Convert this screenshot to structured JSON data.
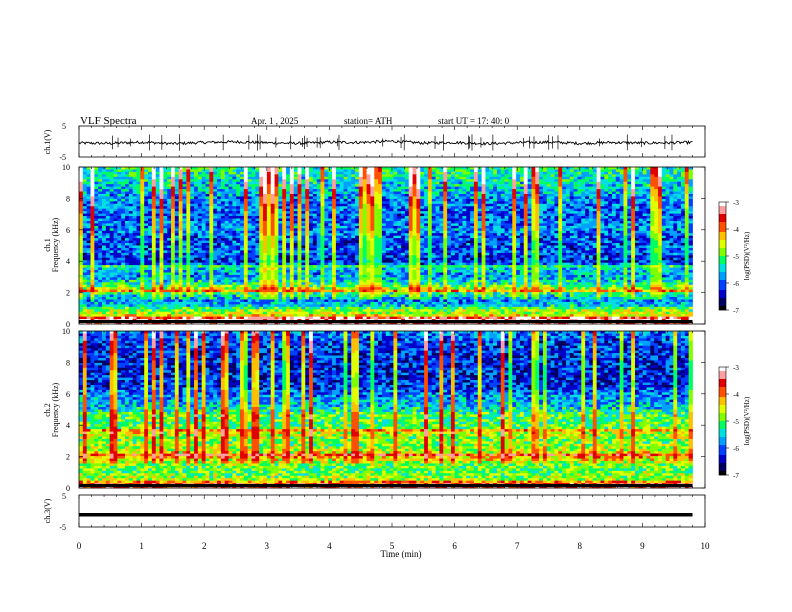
{
  "header": {
    "title": "VLF  Spectra",
    "date": "Apr. 1  , 2025",
    "station": "station= ATH",
    "start": "start  UT  =   17: 40: 0"
  },
  "colors": {
    "spectrum": [
      "#000000",
      "#000060",
      "#0000c8",
      "#0040ff",
      "#00a0ff",
      "#00e0e0",
      "#00ff60",
      "#80ff00",
      "#e0ff00",
      "#ffc000",
      "#ff5000",
      "#e00000",
      "#ffa0a0",
      "#ffffff"
    ],
    "trace": "#000000"
  },
  "chart_data": [
    {
      "type": "line",
      "name": "ch1-waveform",
      "ylabel": "ch.1(V)",
      "ylim": [
        -5,
        5
      ],
      "yticks": [
        "5",
        "-5"
      ],
      "x": [
        0,
        0.5,
        1,
        1.5,
        2,
        2.5,
        3,
        3.5,
        4,
        4.5,
        5,
        5.5,
        6,
        6.5,
        7,
        7.5,
        8,
        8.5,
        9,
        9.5,
        9.8
      ],
      "y": [
        -0.5,
        -0.6,
        -0.2,
        -0.7,
        -0.3,
        -0.1,
        -0.4,
        -0.6,
        -0.2,
        -0.3,
        0.1,
        -0.5,
        -0.3,
        -0.7,
        -0.4,
        -0.2,
        -0.6,
        -0.3,
        -0.5,
        -0.4,
        -0.3
      ]
    },
    {
      "type": "heatmap",
      "name": "ch1-spectrogram",
      "ylabel": "ch.1\nFrequency  (kHz)",
      "ylim": [
        0,
        10
      ],
      "xlim": [
        0,
        10
      ],
      "yticks": [
        0,
        2,
        4,
        6,
        8,
        10
      ],
      "data_end_min": 9.8,
      "colorbar": {
        "label": "log(PSD)(V²/Hz)",
        "range": [
          -7,
          -3
        ],
        "ticks": [
          "-3",
          "-4",
          "-5",
          "-6",
          "-7"
        ]
      },
      "freq_profile": [
        [
          0.0,
          0.95
        ],
        [
          0.3,
          0.8
        ],
        [
          0.6,
          0.6
        ],
        [
          0.9,
          0.55
        ],
        [
          1.2,
          0.35
        ],
        [
          1.5,
          0.3
        ],
        [
          1.9,
          0.42
        ],
        [
          2.2,
          0.62
        ],
        [
          2.5,
          0.45
        ],
        [
          3.0,
          0.3
        ],
        [
          3.5,
          0.35
        ],
        [
          4.0,
          0.2
        ],
        [
          4.6,
          0.25
        ],
        [
          5.3,
          0.22
        ],
        [
          6.0,
          0.3
        ],
        [
          7.0,
          0.25
        ],
        [
          8.0,
          0.3
        ],
        [
          9.0,
          0.38
        ],
        [
          10.0,
          0.45
        ]
      ]
    },
    {
      "type": "heatmap",
      "name": "ch2-spectrogram",
      "ylabel": "ch.2\nFrequency  (kHz)",
      "ylim": [
        0,
        10
      ],
      "xlim": [
        0,
        10
      ],
      "yticks": [
        0,
        2,
        4,
        6,
        8,
        10
      ],
      "data_end_min": 9.8,
      "colorbar": {
        "label": "log(PSD)(V²/Hz)",
        "range": [
          -7,
          -3
        ],
        "ticks": [
          "-3",
          "-4",
          "-5",
          "-6",
          "-7"
        ]
      },
      "freq_profile": [
        [
          0.0,
          0.95
        ],
        [
          0.3,
          0.6
        ],
        [
          0.7,
          0.55
        ],
        [
          1.2,
          0.5
        ],
        [
          1.6,
          0.55
        ],
        [
          2.0,
          0.7
        ],
        [
          2.4,
          0.58
        ],
        [
          3.0,
          0.52
        ],
        [
          3.5,
          0.6
        ],
        [
          4.0,
          0.48
        ],
        [
          4.6,
          0.5
        ],
        [
          5.2,
          0.35
        ],
        [
          5.8,
          0.3
        ],
        [
          6.5,
          0.2
        ],
        [
          7.5,
          0.18
        ],
        [
          8.5,
          0.2
        ],
        [
          9.3,
          0.22
        ],
        [
          10.0,
          0.3
        ]
      ]
    },
    {
      "type": "line",
      "name": "ch3-waveform",
      "ylabel": "ch.3(V)",
      "ylim": [
        -5,
        5
      ],
      "yticks": [
        "5",
        "-5"
      ],
      "x": [
        0,
        9.8
      ],
      "y": [
        -1.2,
        -1.2
      ]
    }
  ],
  "xaxis": {
    "label": "Time  (min)",
    "ticks": [
      "0",
      "1",
      "2",
      "3",
      "4",
      "5",
      "6",
      "7",
      "8",
      "9",
      "10"
    ]
  }
}
